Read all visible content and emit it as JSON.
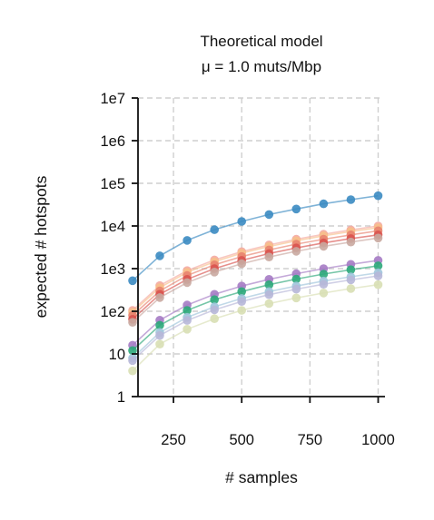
{
  "chart_data": {
    "type": "line",
    "title": [
      "Theoretical model",
      "μ = 1.0 muts/Mbp"
    ],
    "xlabel": "# samples",
    "ylabel": "expected # hotspots",
    "xscale": "linear",
    "yscale": "log",
    "xlim": [
      120,
      1005
    ],
    "ylim": [
      1,
      10000000
    ],
    "xticks": [
      250,
      500,
      750,
      1000
    ],
    "xtick_labels": [
      "250",
      "500",
      "750",
      "1000"
    ],
    "yticks": [
      1,
      10,
      100,
      1000,
      10000,
      100000,
      1000000,
      10000000
    ],
    "ytick_labels": [
      "1",
      "10",
      "1e2",
      "1e3",
      "1e4",
      "1e5",
      "1e6",
      "1e7"
    ],
    "grid": true,
    "legend": "none",
    "x": [
      100,
      200,
      300,
      400,
      500,
      600,
      700,
      800,
      900,
      1000
    ],
    "series": [
      {
        "color": "#3b8bc2",
        "values": [
          520,
          2000,
          4600,
          8200,
          12800,
          18500,
          25000,
          33000,
          41500,
          51000
        ]
      },
      {
        "color": "#f4a9a0",
        "values": [
          105,
          400,
          900,
          1600,
          2500,
          3600,
          4900,
          6400,
          8100,
          10000
        ]
      },
      {
        "color": "#f7c08a",
        "values": [
          95,
          360,
          820,
          1450,
          2300,
          3300,
          4500,
          5900,
          7400,
          9100
        ]
      },
      {
        "color": "#e8836f",
        "values": [
          80,
          300,
          690,
          1230,
          1920,
          2750,
          3750,
          4900,
          6200,
          7700
        ]
      },
      {
        "color": "#d9534f",
        "values": [
          65,
          250,
          560,
          1000,
          1560,
          2250,
          3050,
          4000,
          5050,
          6200
        ]
      },
      {
        "color": "#c9a8a0",
        "values": [
          55,
          210,
          470,
          830,
          1300,
          1870,
          2550,
          3330,
          4200,
          5200
        ]
      },
      {
        "color": "#a57bc4",
        "values": [
          16,
          62,
          140,
          250,
          390,
          560,
          760,
          1000,
          1260,
          1560
        ]
      },
      {
        "color": "#2ca87a",
        "values": [
          12,
          47,
          105,
          187,
          290,
          420,
          570,
          745,
          945,
          1165
        ]
      },
      {
        "color": "#9fc5dc",
        "values": [
          8,
          32,
          72,
          128,
          200,
          290,
          390,
          510,
          645,
          800
        ]
      },
      {
        "color": "#b7b7d8",
        "values": [
          7,
          27,
          61,
          108,
          170,
          245,
          330,
          430,
          545,
          675
        ]
      },
      {
        "color": "#d8dfb4",
        "values": [
          4,
          17,
          38,
          67,
          105,
          152,
          205,
          268,
          340,
          420
        ]
      }
    ]
  }
}
